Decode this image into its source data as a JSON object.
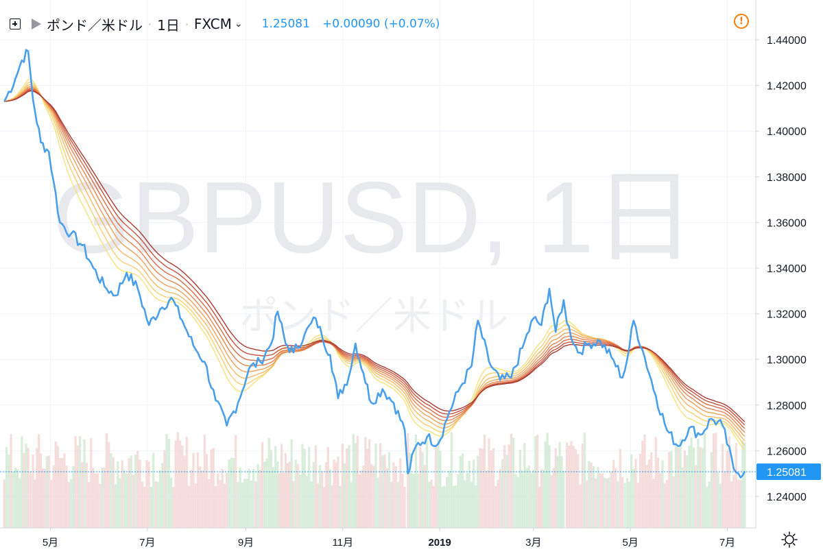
{
  "header": {
    "symbol_name": "ポンド／米ドル",
    "interval": "1日",
    "exchange": "FXCM",
    "last_price": "1.25081",
    "change": "+0.00090 (+0.07%)",
    "warning_icon": "warning-circle-icon"
  },
  "watermark": {
    "main": "GBPUSD, 1日",
    "sub": "ポンド／米ドル"
  },
  "chart_data": {
    "type": "line",
    "title": "",
    "xlabel": "",
    "ylabel": "",
    "ylim": [
      1.233,
      1.456
    ],
    "x_ticks": [
      "5月",
      "7月",
      "9月",
      "11月",
      "2019",
      "3月",
      "5月",
      "7月"
    ],
    "y_ticks": [
      "1.44000",
      "1.42000",
      "1.40000",
      "1.38000",
      "1.36000",
      "1.34000",
      "1.32000",
      "1.30000",
      "1.28000",
      "1.26000",
      "1.24000"
    ],
    "y_tick_values": [
      1.44,
      1.42,
      1.4,
      1.38,
      1.36,
      1.34,
      1.32,
      1.3,
      1.28,
      1.26,
      1.24
    ],
    "last_price_label": "1.25081",
    "last_price_value": 1.25081,
    "price_color": "#4a9fea",
    "price_series": [
      {
        "date": "2018-04-02",
        "close": 1.413
      },
      {
        "date": "2018-04-09",
        "close": 1.423
      },
      {
        "date": "2018-04-13",
        "close": 1.431
      },
      {
        "date": "2018-04-17",
        "close": 1.435
      },
      {
        "date": "2018-04-20",
        "close": 1.414
      },
      {
        "date": "2018-04-25",
        "close": 1.395
      },
      {
        "date": "2018-04-30",
        "close": 1.391
      },
      {
        "date": "2018-05-03",
        "close": 1.378
      },
      {
        "date": "2018-05-07",
        "close": 1.36
      },
      {
        "date": "2018-05-14",
        "close": 1.355
      },
      {
        "date": "2018-05-21",
        "close": 1.35
      },
      {
        "date": "2018-05-28",
        "close": 1.34
      },
      {
        "date": "2018-06-04",
        "close": 1.332
      },
      {
        "date": "2018-06-11",
        "close": 1.328
      },
      {
        "date": "2018-06-18",
        "close": 1.338
      },
      {
        "date": "2018-06-25",
        "close": 1.331
      },
      {
        "date": "2018-07-02",
        "close": 1.315
      },
      {
        "date": "2018-07-09",
        "close": 1.322
      },
      {
        "date": "2018-07-16",
        "close": 1.327
      },
      {
        "date": "2018-07-23",
        "close": 1.317
      },
      {
        "date": "2018-07-30",
        "close": 1.306
      },
      {
        "date": "2018-08-06",
        "close": 1.299
      },
      {
        "date": "2018-08-13",
        "close": 1.282
      },
      {
        "date": "2018-08-20",
        "close": 1.271
      },
      {
        "date": "2018-08-27",
        "close": 1.281
      },
      {
        "date": "2018-09-03",
        "close": 1.296
      },
      {
        "date": "2018-09-10",
        "close": 1.299
      },
      {
        "date": "2018-09-17",
        "close": 1.307
      },
      {
        "date": "2018-09-21",
        "close": 1.321
      },
      {
        "date": "2018-09-26",
        "close": 1.307
      },
      {
        "date": "2018-10-01",
        "close": 1.303
      },
      {
        "date": "2018-10-08",
        "close": 1.311
      },
      {
        "date": "2018-10-15",
        "close": 1.318
      },
      {
        "date": "2018-10-19",
        "close": 1.31
      },
      {
        "date": "2018-10-24",
        "close": 1.302
      },
      {
        "date": "2018-10-29",
        "close": 1.283
      },
      {
        "date": "2018-11-05",
        "close": 1.293
      },
      {
        "date": "2018-11-09",
        "close": 1.307
      },
      {
        "date": "2018-11-14",
        "close": 1.294
      },
      {
        "date": "2018-11-19",
        "close": 1.281
      },
      {
        "date": "2018-11-26",
        "close": 1.287
      },
      {
        "date": "2018-12-03",
        "close": 1.281
      },
      {
        "date": "2018-12-10",
        "close": 1.269
      },
      {
        "date": "2018-12-12",
        "close": 1.25
      },
      {
        "date": "2018-12-17",
        "close": 1.262
      },
      {
        "date": "2018-12-24",
        "close": 1.266
      },
      {
        "date": "2018-12-31",
        "close": 1.263
      },
      {
        "date": "2019-01-07",
        "close": 1.277
      },
      {
        "date": "2019-01-14",
        "close": 1.288
      },
      {
        "date": "2019-01-21",
        "close": 1.297
      },
      {
        "date": "2019-01-25",
        "close": 1.317
      },
      {
        "date": "2019-02-01",
        "close": 1.299
      },
      {
        "date": "2019-02-08",
        "close": 1.291
      },
      {
        "date": "2019-02-15",
        "close": 1.292
      },
      {
        "date": "2019-02-22",
        "close": 1.305
      },
      {
        "date": "2019-03-01",
        "close": 1.318
      },
      {
        "date": "2019-03-06",
        "close": 1.315
      },
      {
        "date": "2019-03-11",
        "close": 1.331
      },
      {
        "date": "2019-03-15",
        "close": 1.312
      },
      {
        "date": "2019-03-20",
        "close": 1.326
      },
      {
        "date": "2019-03-22",
        "close": 1.316
      },
      {
        "date": "2019-03-29",
        "close": 1.303
      },
      {
        "date": "2019-04-05",
        "close": 1.307
      },
      {
        "date": "2019-04-12",
        "close": 1.308
      },
      {
        "date": "2019-04-19",
        "close": 1.301
      },
      {
        "date": "2019-04-26",
        "close": 1.292
      },
      {
        "date": "2019-04-29",
        "close": 1.3
      },
      {
        "date": "2019-05-03",
        "close": 1.317
      },
      {
        "date": "2019-05-10",
        "close": 1.301
      },
      {
        "date": "2019-05-17",
        "close": 1.284
      },
      {
        "date": "2019-05-24",
        "close": 1.269
      },
      {
        "date": "2019-05-31",
        "close": 1.262
      },
      {
        "date": "2019-06-07",
        "close": 1.27
      },
      {
        "date": "2019-06-14",
        "close": 1.267
      },
      {
        "date": "2019-06-21",
        "close": 1.274
      },
      {
        "date": "2019-06-28",
        "close": 1.271
      },
      {
        "date": "2019-07-05",
        "close": 1.252
      },
      {
        "date": "2019-07-08",
        "close": 1.25
      },
      {
        "date": "2019-07-12",
        "close": 1.251
      }
    ]
  }
}
